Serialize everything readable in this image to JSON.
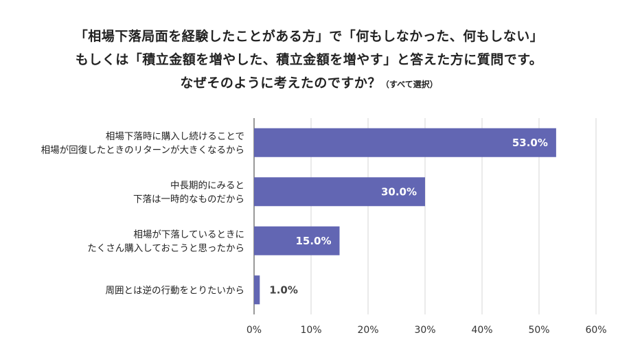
{
  "chart_data": {
    "type": "bar",
    "orientation": "horizontal",
    "title_lines": [
      "「相場下落局面を経験したことがある方」で「何もしなかった、何もしない」",
      "もしくは「積立金額を増やした、積立金額を増やす」と答えた方に質問です。",
      "なぜそのように考えたのですか？"
    ],
    "title_note": "（すべて選択）",
    "categories": [
      [
        "相場下落時に購入し続けることで",
        "相場が回復したときのリターンが大きくなるから"
      ],
      [
        "中長期的にみると",
        "下落は一時的なものだから"
      ],
      [
        "相場が下落しているときに",
        "たくさん購入しておこうと思ったから"
      ],
      [
        "周囲とは逆の行動をとりたいから"
      ]
    ],
    "values": [
      53.0,
      30.0,
      15.0,
      1.0
    ],
    "value_labels": [
      "53.0%",
      "30.0%",
      "15.0%",
      "1.0%"
    ],
    "xlim": [
      0,
      60
    ],
    "ticks": [
      0,
      10,
      20,
      30,
      40,
      50,
      60
    ],
    "tick_labels": [
      "0%",
      "10%",
      "20%",
      "30%",
      "40%",
      "50%",
      "60%"
    ],
    "grid": true,
    "bar_color": "#6266b3",
    "value_label_inside_color": "#ffffff",
    "value_label_outside_color": "#444444",
    "gridline_color": "#d4d4d4"
  }
}
